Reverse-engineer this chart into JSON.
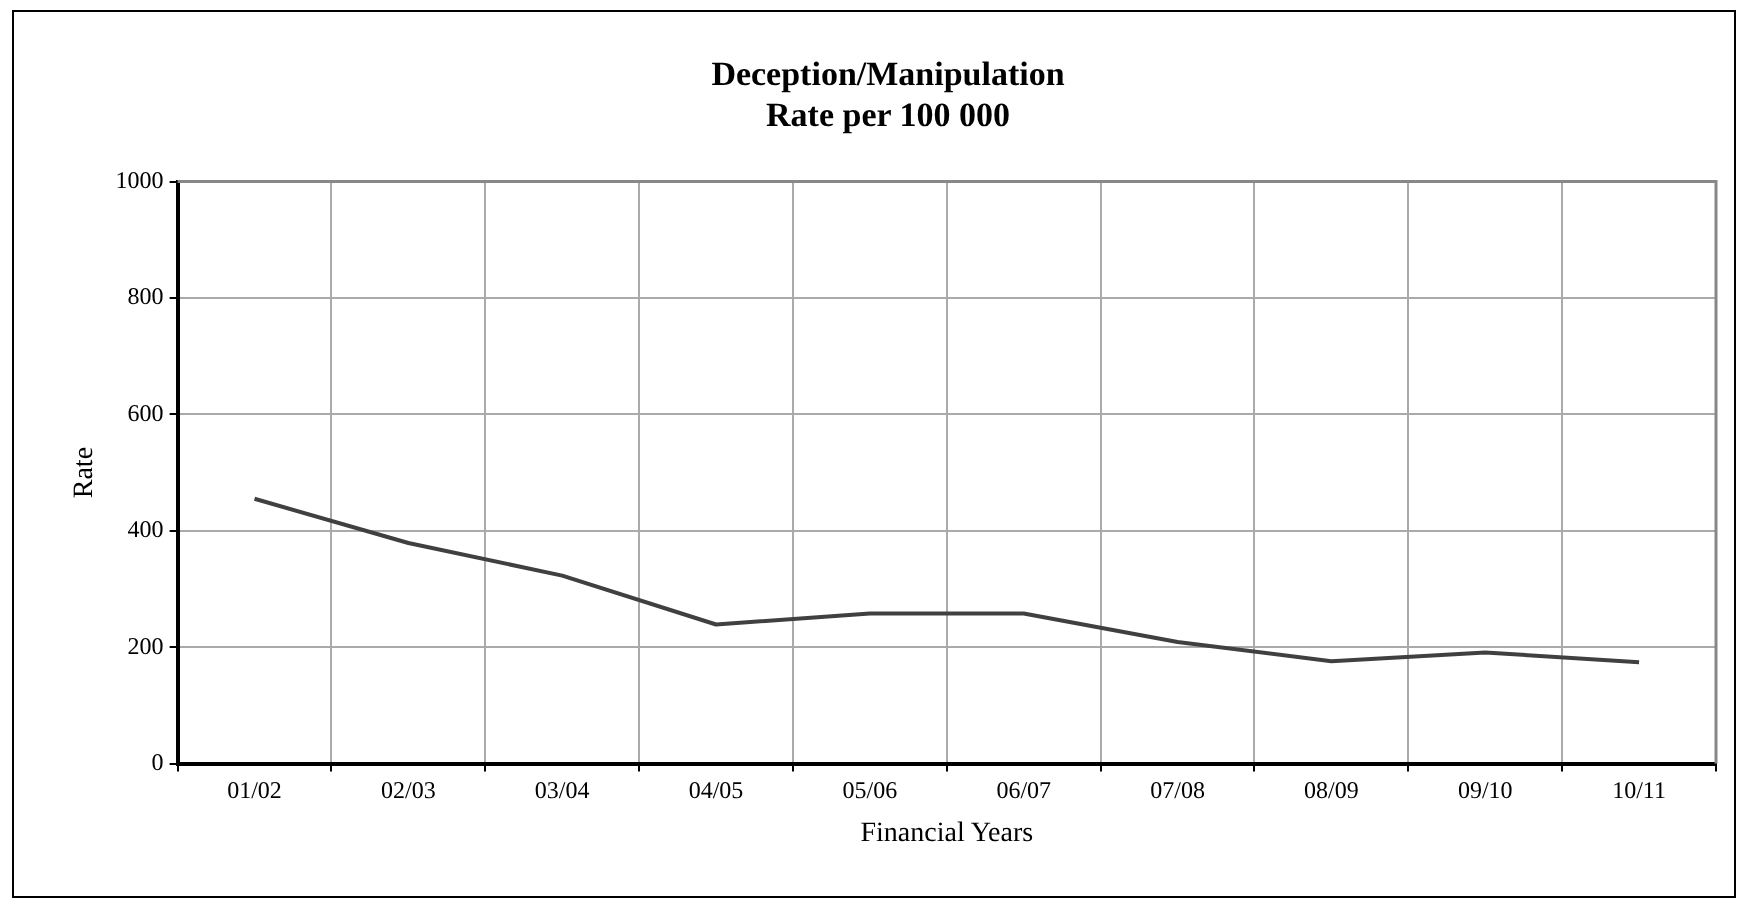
{
  "chart_data": {
    "type": "line",
    "title": "Deception/Manipulation\nRate per 100 000",
    "xlabel": "Financial Years",
    "ylabel": "Rate",
    "categories": [
      "01/02",
      "02/03",
      "03/04",
      "04/05",
      "05/06",
      "06/07",
      "07/08",
      "08/09",
      "09/10",
      "10/11"
    ],
    "series": [
      {
        "color": "#404040",
        "values": [
          455,
          379,
          323,
          239,
          258,
          258,
          209,
          176,
          191,
          174
        ]
      }
    ],
    "ylim": [
      0,
      1000
    ],
    "yticks": [
      0,
      200,
      400,
      600,
      800,
      1000
    ],
    "grid": true,
    "legend": false,
    "marker": "none",
    "line_style": "solid"
  }
}
